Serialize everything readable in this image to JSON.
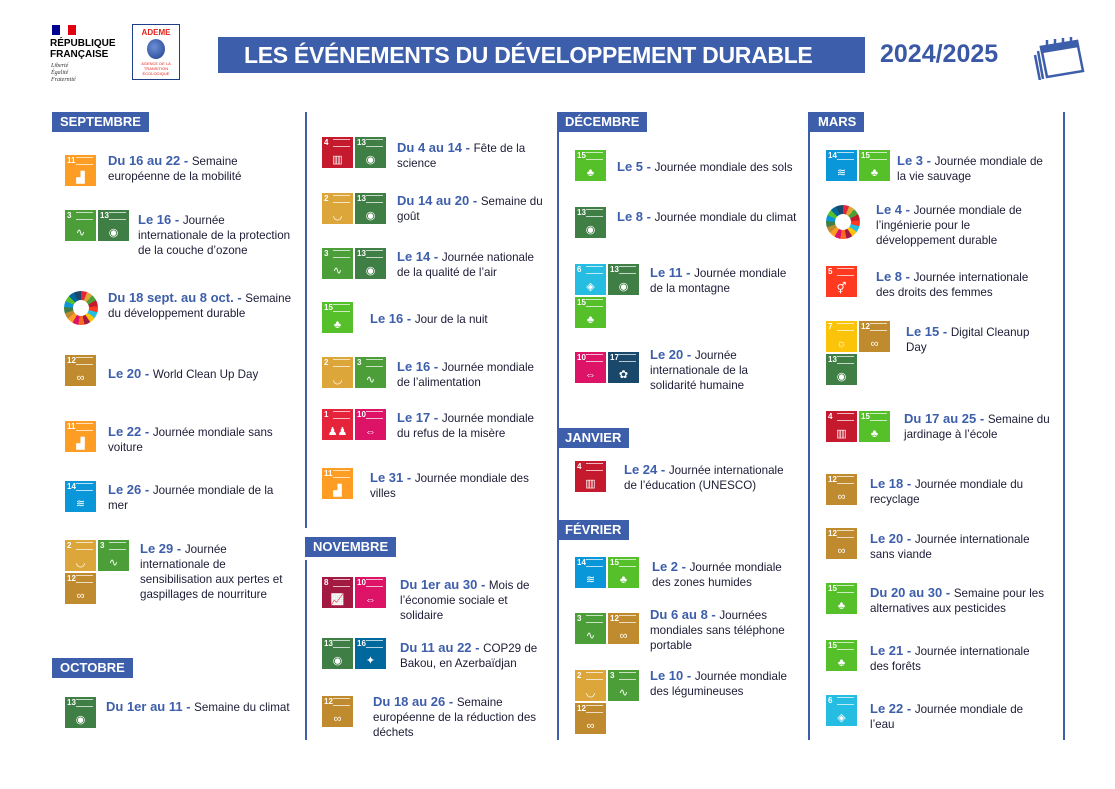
{
  "header": {
    "republique": "RÉPUBLIQUE FRANÇAISE",
    "motto": [
      "Liberté",
      "Égalité",
      "Fraternité"
    ],
    "ademe": "ADEME",
    "ademe_sub": "AGENCE DE LA TRANSITION ÉCOLOGIQUE",
    "title": "LES ÉVÉNEMENTS DU DÉVELOPPEMENT DURABLE",
    "year": "2024/2025",
    "icon": "calendar-icon"
  },
  "colors": {
    "accent": "#3d5eaa",
    "text": "#1b1b35"
  },
  "sdg_colors": {
    "1": "#e5243b",
    "2": "#dda63a",
    "3": "#4c9f38",
    "4": "#c5192d",
    "5": "#ff3a21",
    "6": "#26bde2",
    "7": "#fcc30b",
    "8": "#a21942",
    "10": "#dd1367",
    "11": "#fd9d24",
    "12": "#bf8b2e",
    "13": "#3f7e44",
    "14": "#0a97d9",
    "15": "#56c02b",
    "16": "#00689d",
    "17": "#19486a"
  },
  "months": [
    {
      "label": "SEPTEMBRE",
      "events": [
        {
          "date": "Du 16 au 22",
          "text": "Semaine européenne de la mobilité",
          "sdgs": [
            11
          ]
        },
        {
          "date": "Le 16",
          "text": "Journée internationale de la protection de la couche d’ozone",
          "sdgs": [
            3,
            13
          ]
        },
        {
          "date": "Du 18 sept. au 8 oct.",
          "text": "Semaine du développement durable",
          "sdgs": [
            "wheel"
          ]
        },
        {
          "date": "Le 20",
          "text": "World Clean Up Day",
          "sdgs": [
            12
          ]
        },
        {
          "date": "Le 22",
          "text": "Journée mondiale sans voiture",
          "sdgs": [
            11
          ]
        },
        {
          "date": "Le 26",
          "text": "Journée mondiale de la mer",
          "sdgs": [
            14
          ]
        },
        {
          "date": "Le 29",
          "text": "Journée internationale de sensibilisation aux pertes et gaspillages de nourriture",
          "sdgs": [
            2,
            3,
            12
          ]
        }
      ]
    },
    {
      "label": "OCTOBRE",
      "events": [
        {
          "date": "Du 1er au 11",
          "text": "Semaine du climat",
          "sdgs": [
            13
          ]
        },
        {
          "date": "Du 4 au 14",
          "text": "Fête de la science",
          "sdgs": [
            4,
            13
          ]
        },
        {
          "date": "Du 14 au 20",
          "text": "Semaine du goût",
          "sdgs": [
            2,
            13
          ]
        },
        {
          "date": "Le 14",
          "text": "Journée nationale de la qualité de l’air",
          "sdgs": [
            3,
            13
          ]
        },
        {
          "date": "Le 16",
          "text": "Jour de la nuit",
          "sdgs": [
            15
          ]
        },
        {
          "date": "Le 16",
          "text": "Journée mondiale de l’alimentation",
          "sdgs": [
            2,
            3
          ]
        },
        {
          "date": "Le 17",
          "text": "Journée mondiale du refus de la misère",
          "sdgs": [
            1,
            10
          ]
        },
        {
          "date": "Le 31",
          "text": "Journée mondiale des villes",
          "sdgs": [
            11
          ]
        }
      ]
    },
    {
      "label": "NOVEMBRE",
      "events": [
        {
          "date": "Du 1er au 30",
          "text": "Mois de l’économie sociale et solidaire",
          "sdgs": [
            8,
            10
          ]
        },
        {
          "date": "Du 11 au 22",
          "text": "COP29 de Bakou, en Azerbaïdjan",
          "sdgs": [
            13,
            16
          ]
        },
        {
          "date": "Du 18 au 26",
          "text": "Semaine européenne de la réduction des déchets",
          "sdgs": [
            12
          ]
        }
      ]
    },
    {
      "label": "DÉCEMBRE",
      "events": [
        {
          "date": "Le 5",
          "text": "Journée mondiale des sols",
          "sdgs": [
            15
          ]
        },
        {
          "date": "Le 8",
          "text": "Journée mondiale du climat",
          "sdgs": [
            13
          ]
        },
        {
          "date": "Le 11",
          "text": "Journée mondiale de la montagne",
          "sdgs": [
            6,
            13,
            15
          ]
        },
        {
          "date": "Le 20",
          "text": "Journée internationale de la solidarité humaine",
          "sdgs": [
            10,
            17
          ]
        }
      ]
    },
    {
      "label": "JANVIER",
      "events": [
        {
          "date": "Le 24",
          "text": "Journée internationale de l’éducation (UNESCO)",
          "sdgs": [
            4
          ]
        }
      ]
    },
    {
      "label": "FÉVRIER",
      "events": [
        {
          "date": "Le 2",
          "text": "Journée mondiale des zones humides",
          "sdgs": [
            14,
            15
          ]
        },
        {
          "date": "Du 6 au 8",
          "text": "Journées mondiales sans téléphone portable",
          "sdgs": [
            3,
            12
          ]
        },
        {
          "date": "Le 10",
          "text": "Journée mondiale des légumineuses",
          "sdgs": [
            2,
            3,
            12
          ]
        }
      ]
    },
    {
      "label": "MARS",
      "events": [
        {
          "date": "Le 3",
          "text": "Journée mondiale de la vie sauvage",
          "sdgs": [
            14,
            15
          ]
        },
        {
          "date": "Le 4",
          "text": "Journée mondiale de l’ingénierie pour le développement durable",
          "sdgs": [
            "wheel"
          ]
        },
        {
          "date": "Le 8",
          "text": "Journée internationale des droits des femmes",
          "sdgs": [
            5
          ]
        },
        {
          "date": "Le 15",
          "text": "Digital Cleanup Day",
          "sdgs": [
            7,
            12,
            13
          ]
        },
        {
          "date": "Du 17 au 25",
          "text": "Semaine du jardinage à l’école",
          "sdgs": [
            4,
            15
          ]
        },
        {
          "date": "Le 18",
          "text": "Journée mondiale du recyclage",
          "sdgs": [
            12
          ]
        },
        {
          "date": "Le 20",
          "text": "Journée internationale sans viande",
          "sdgs": [
            12
          ]
        },
        {
          "date": "Du 20 au 30",
          "text": "Semaine pour les alternatives aux pesticides",
          "sdgs": [
            15
          ]
        },
        {
          "date": "Le 21",
          "text": "Journée internationale des forêts",
          "sdgs": [
            15
          ]
        },
        {
          "date": "Le 22",
          "text": "Journée mondiale de l’eau",
          "sdgs": [
            6
          ]
        }
      ]
    }
  ]
}
